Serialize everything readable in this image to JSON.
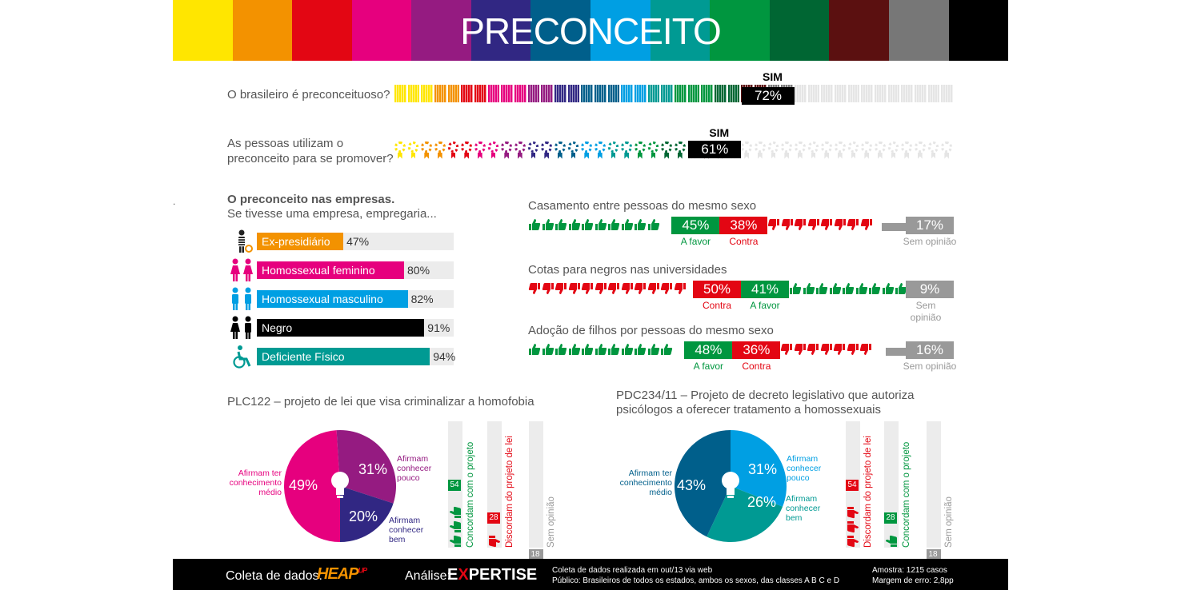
{
  "header": {
    "title": "PRECONCEITO",
    "colors": [
      "#ffe600",
      "#f39200",
      "#e30613",
      "#e6007e",
      "#951b81",
      "#312783",
      "#005f8b",
      "#009fe3",
      "#009a93",
      "#00963f",
      "#006633",
      "#5b1010",
      "#777777",
      "#000000"
    ]
  },
  "q1": {
    "question": "O brasileiro é preconceituoso?",
    "answer": "SIM",
    "pct": "72%",
    "value": 72
  },
  "q2": {
    "question_line1": "As pessoas utilizam o",
    "question_line2": "preconceito para se promover?",
    "answer": "SIM",
    "pct": "61%",
    "value": 61
  },
  "dot": ".",
  "empresas": {
    "title": "O preconceito nas empresas.",
    "subtitle": "Se tivesse uma empresa, empregaria...",
    "items": [
      {
        "label": "Ex-presidiário",
        "pct": "47%",
        "value": 47,
        "color": "#f39200",
        "icon": "prisoner-icon"
      },
      {
        "label": "Homossexual feminino",
        "pct": "80%",
        "value": 80,
        "color": "#e6007e",
        "icon": "women-couple-icon"
      },
      {
        "label": "Homossexual masculino",
        "pct": "82%",
        "value": 82,
        "color": "#009fe3",
        "icon": "men-couple-icon"
      },
      {
        "label": "Negro",
        "pct": "91%",
        "value": 91,
        "color": "#000000",
        "icon": "couple-icon"
      },
      {
        "label": "Deficiente Físico",
        "pct": "94%",
        "value": 94,
        "color": "#009a93",
        "icon": "wheelchair-icon"
      }
    ]
  },
  "temas": [
    {
      "title": "Casamento entre pessoas do mesmo sexo",
      "segments": [
        {
          "pct": "45%",
          "value": 45,
          "label": "A favor",
          "color": "#00963f",
          "kind": "up"
        },
        {
          "pct": "38%",
          "value": 38,
          "label": "Contra",
          "color": "#e30613",
          "kind": "down"
        },
        {
          "pct": "17%",
          "value": 17,
          "label": "Sem opinião",
          "color": "#999999",
          "kind": "none"
        }
      ]
    },
    {
      "title": "Cotas para negros nas universidades",
      "segments": [
        {
          "pct": "50%",
          "value": 50,
          "label": "Contra",
          "color": "#e30613",
          "kind": "down"
        },
        {
          "pct": "41%",
          "value": 41,
          "label": "A favor",
          "color": "#00963f",
          "kind": "up"
        },
        {
          "pct": "9%",
          "value": 9,
          "label": "Sem opinião",
          "color": "#999999",
          "kind": "none"
        }
      ]
    },
    {
      "title": "Adoção de filhos por pessoas do mesmo sexo",
      "segments": [
        {
          "pct": "48%",
          "value": 48,
          "label": "A favor",
          "color": "#00963f",
          "kind": "up"
        },
        {
          "pct": "36%",
          "value": 36,
          "label": "Contra",
          "color": "#e30613",
          "kind": "down"
        },
        {
          "pct": "16%",
          "value": 16,
          "label": "Sem opinião",
          "color": "#999999",
          "kind": "none"
        }
      ]
    }
  ],
  "plc": {
    "title": "PLC122 – projeto de lei que visa criminalizar a homofobia",
    "pie": [
      {
        "pct": "49%",
        "value": 49,
        "color": "#e6007e",
        "label_lines": [
          "Afirmam ter",
          "conhecimento",
          "médio"
        ]
      },
      {
        "pct": "31%",
        "value": 31,
        "color": "#951b81",
        "label_lines": [
          "Afirmam",
          "conhecer",
          "pouco"
        ]
      },
      {
        "pct": "20%",
        "value": 20,
        "color": "#312783",
        "label_lines": [
          "Afirmam",
          "conhecer",
          "bem"
        ]
      }
    ],
    "bars": [
      {
        "value": 54,
        "label": "Concordam com o projeto",
        "color": "#00963f",
        "kind": "up"
      },
      {
        "value": 28,
        "label": "Discordam do projeto de lei",
        "color": "#e30613",
        "kind": "down"
      },
      {
        "value": 18,
        "label": "Sem opinião",
        "color": "#999999",
        "kind": "none"
      }
    ]
  },
  "pdc": {
    "title_line1": "PDC234/11 – Projeto de decreto legislativo que autoriza",
    "title_line2": "psicólogos a oferecer tratamento a homossexuais",
    "pie": [
      {
        "pct": "31%",
        "value": 31,
        "color": "#009fe3",
        "label_lines": [
          "Afirmam",
          "conhecer",
          "pouco"
        ]
      },
      {
        "pct": "26%",
        "value": 26,
        "color": "#009a93",
        "label_lines": [
          "Afirmam",
          "conhecer",
          "bem"
        ]
      },
      {
        "pct": "43%",
        "value": 43,
        "color": "#005f8b",
        "label_lines": [
          "Afirmam ter",
          "conhecimento",
          "médio"
        ]
      }
    ],
    "bars": [
      {
        "value": 54,
        "label": "Discordam do projeto de lei",
        "color": "#e30613",
        "kind": "down"
      },
      {
        "value": 28,
        "label": "Concordam com o projeto",
        "color": "#00963f",
        "kind": "up"
      },
      {
        "value": 18,
        "label": "Sem opinião",
        "color": "#999999",
        "kind": "none"
      }
    ]
  },
  "footer": {
    "coleta_label": "Coleta de dados:",
    "coleta_logo": "HEAP",
    "coleta_logo_sup": "UP",
    "analise_label": "Análise:",
    "analise_logo_a": "E",
    "analise_logo_b": "X",
    "analise_logo_c": "PERTISE",
    "info_line1": "Coleta de dados realizada em out/13 via web",
    "info_line2": "Público: Brasileiros de todos os estados, ambos os sexos, das classes A B C e D",
    "amostra": "Amostra: 1215 casos",
    "margem": "Margem de erro: 2,8pp"
  }
}
